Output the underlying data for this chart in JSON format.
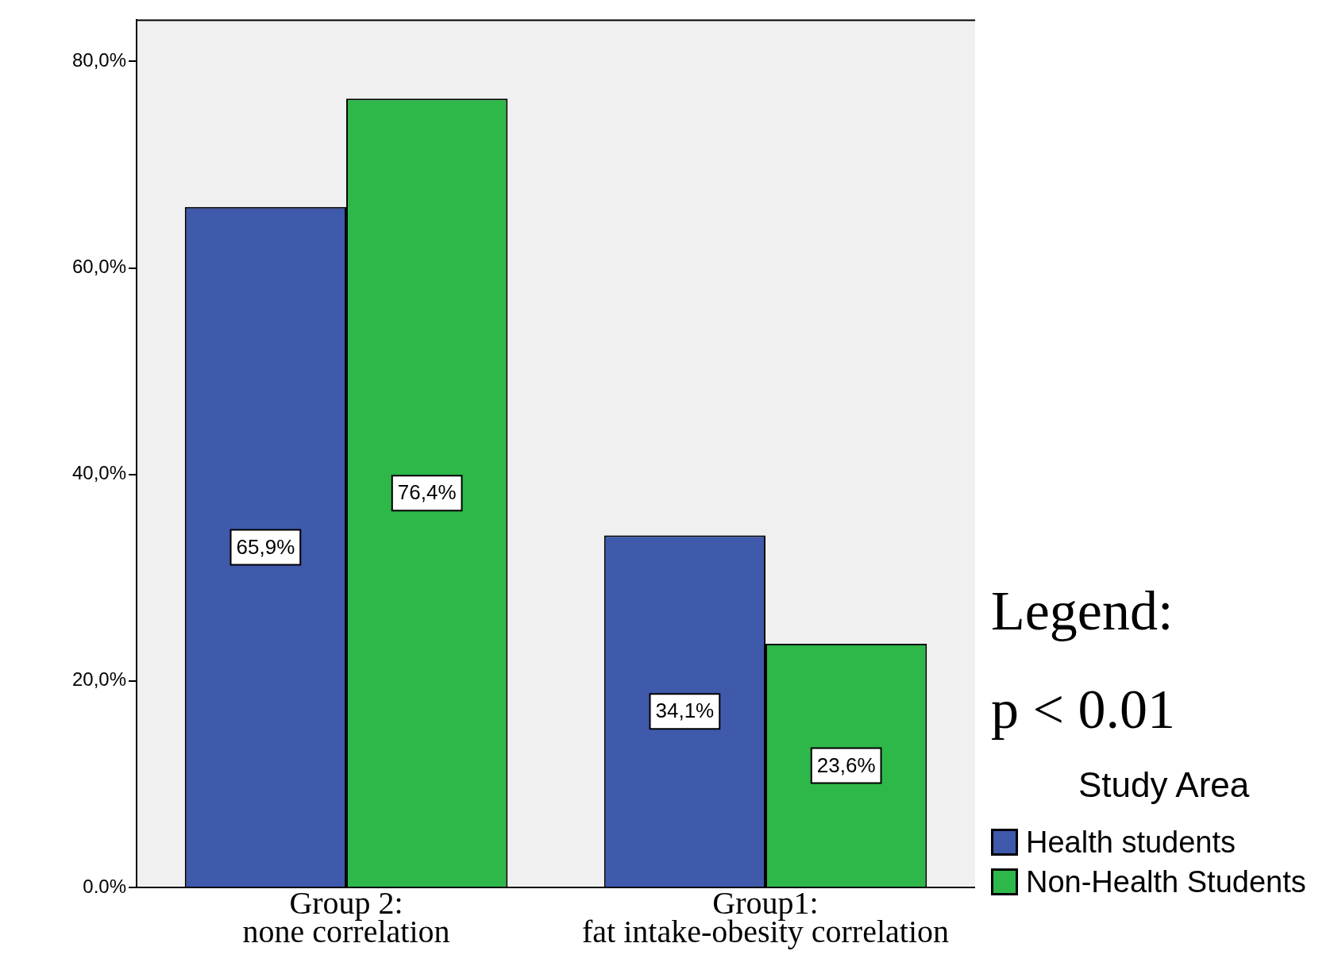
{
  "chart_data": {
    "type": "bar",
    "categories": [
      "Group 2:\nnone correlation",
      "Group1:\nfat intake-obesity correlation"
    ],
    "series": [
      {
        "name": "Health students",
        "color": "#3f59ab",
        "values": [
          65.9,
          34.1
        ],
        "value_labels": [
          "65,9%",
          "34,1%"
        ]
      },
      {
        "name": "Non-Health Students",
        "color": "#2eb84a",
        "values": [
          76.4,
          23.6
        ],
        "value_labels": [
          "76,4%",
          "23,6%"
        ]
      }
    ],
    "ylim": [
      0,
      84
    ],
    "yticks": [
      {
        "value": 0,
        "label": "0.0%"
      },
      {
        "value": 20,
        "label": "20,0%"
      },
      {
        "value": 40,
        "label": "40,0%"
      },
      {
        "value": 60,
        "label": "60,0%"
      },
      {
        "value": 80,
        "label": "80,0%"
      }
    ],
    "grid": false,
    "legend": "right",
    "legend_title": "Study Area",
    "annotations": [
      "Legend:",
      "p < 0.01"
    ]
  }
}
